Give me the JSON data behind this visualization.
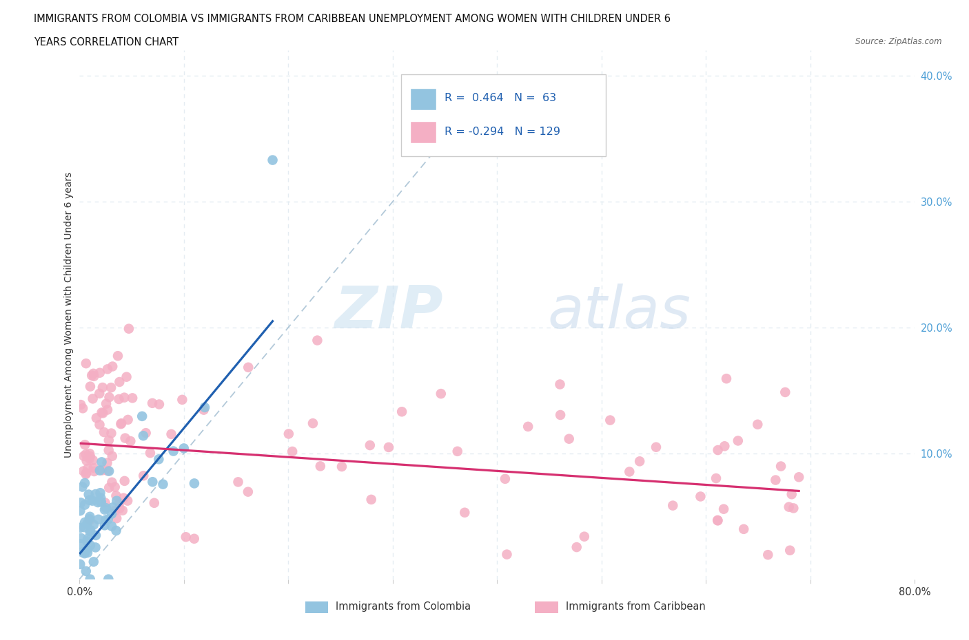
{
  "title_line1": "IMMIGRANTS FROM COLOMBIA VS IMMIGRANTS FROM CARIBBEAN UNEMPLOYMENT AMONG WOMEN WITH CHILDREN UNDER 6",
  "title_line2": "YEARS CORRELATION CHART",
  "source": "Source: ZipAtlas.com",
  "ylabel": "Unemployment Among Women with Children Under 6 years",
  "x_min": 0.0,
  "x_max": 0.8,
  "y_min": 0.0,
  "y_max": 0.42,
  "colombia_R": 0.464,
  "colombia_N": 63,
  "caribbean_R": -0.294,
  "caribbean_N": 129,
  "colombia_color": "#93c4e0",
  "caribbean_color": "#f4afc4",
  "colombia_line_color": "#2060b0",
  "caribbean_line_color": "#d63070",
  "ref_line_color": "#b8ccd8",
  "grid_color": "#e4ecf2",
  "right_tick_color": "#4d9fd6",
  "text_color": "#111111",
  "source_color": "#666666",
  "background_color": "#ffffff",
  "legend_text_color": "#2060b0",
  "bottom_legend_color": "#333333"
}
